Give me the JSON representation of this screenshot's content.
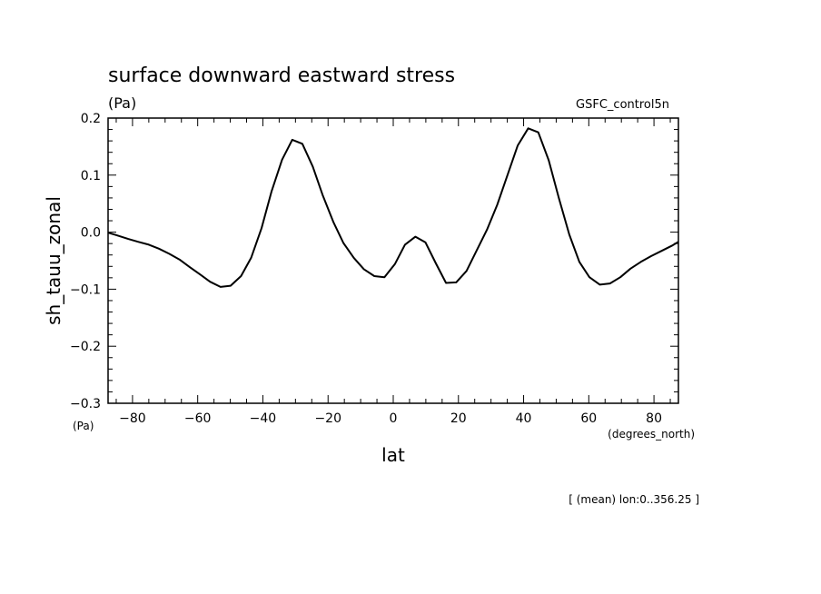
{
  "header": {
    "title": "surface downward eastward stress",
    "units": "(Pa)",
    "dataset": "GSFC_control5n"
  },
  "footer": {
    "note": "[ (mean) lon:0..356.25 ]"
  },
  "chart_data": {
    "type": "line",
    "title": "surface downward eastward stress",
    "xlabel": "lat",
    "ylabel": "sh_tauu_zonal",
    "x_units": "(degrees_north)",
    "y_units": "(Pa)",
    "xlim": [
      -87.5,
      87.5
    ],
    "ylim": [
      -0.3,
      0.2
    ],
    "x_ticks": [
      -80,
      -60,
      -40,
      -20,
      0,
      20,
      40,
      60,
      80
    ],
    "y_ticks": [
      -0.3,
      -0.2,
      -0.1,
      0.0,
      0.1,
      0.2
    ],
    "x_tick_labels": [
      "−80",
      "−60",
      "−40",
      "−20",
      "0",
      "20",
      "40",
      "60",
      "80"
    ],
    "y_tick_labels": [
      "−0.3",
      "−0.2",
      "−0.1",
      "0.0",
      "0.1",
      "0.2"
    ],
    "grid": false,
    "series": [
      {
        "color": "#000000",
        "x": [
          -87.5,
          -84.5,
          -81.3,
          -78.2,
          -75.0,
          -71.9,
          -68.7,
          -65.6,
          -62.5,
          -59.3,
          -56.2,
          -53.0,
          -49.9,
          -46.7,
          -43.6,
          -40.4,
          -37.3,
          -34.1,
          -31.0,
          -27.9,
          -24.7,
          -21.6,
          -18.4,
          -15.3,
          -12.1,
          -9.0,
          -5.8,
          -2.7,
          0.5,
          3.6,
          6.8,
          9.9,
          13.0,
          16.2,
          19.3,
          22.5,
          25.6,
          28.8,
          31.9,
          35.1,
          38.2,
          41.4,
          44.5,
          47.7,
          50.8,
          54.0,
          57.1,
          60.2,
          63.4,
          66.5,
          69.7,
          72.8,
          76.0,
          79.1,
          82.3,
          85.4,
          87.5
        ],
        "y": [
          -0.001,
          -0.006,
          -0.012,
          -0.017,
          -0.022,
          -0.029,
          -0.038,
          -0.048,
          -0.061,
          -0.074,
          -0.087,
          -0.096,
          -0.094,
          -0.077,
          -0.045,
          0.007,
          0.072,
          0.127,
          0.162,
          0.155,
          0.115,
          0.064,
          0.018,
          -0.019,
          -0.045,
          -0.065,
          -0.077,
          -0.079,
          -0.056,
          -0.022,
          -0.008,
          -0.018,
          -0.054,
          -0.089,
          -0.088,
          -0.068,
          -0.032,
          0.005,
          0.048,
          0.101,
          0.152,
          0.182,
          0.175,
          0.126,
          0.06,
          -0.004,
          -0.052,
          -0.079,
          -0.092,
          -0.09,
          -0.079,
          -0.064,
          -0.052,
          -0.042,
          -0.033,
          -0.024,
          -0.017
        ]
      }
    ]
  }
}
